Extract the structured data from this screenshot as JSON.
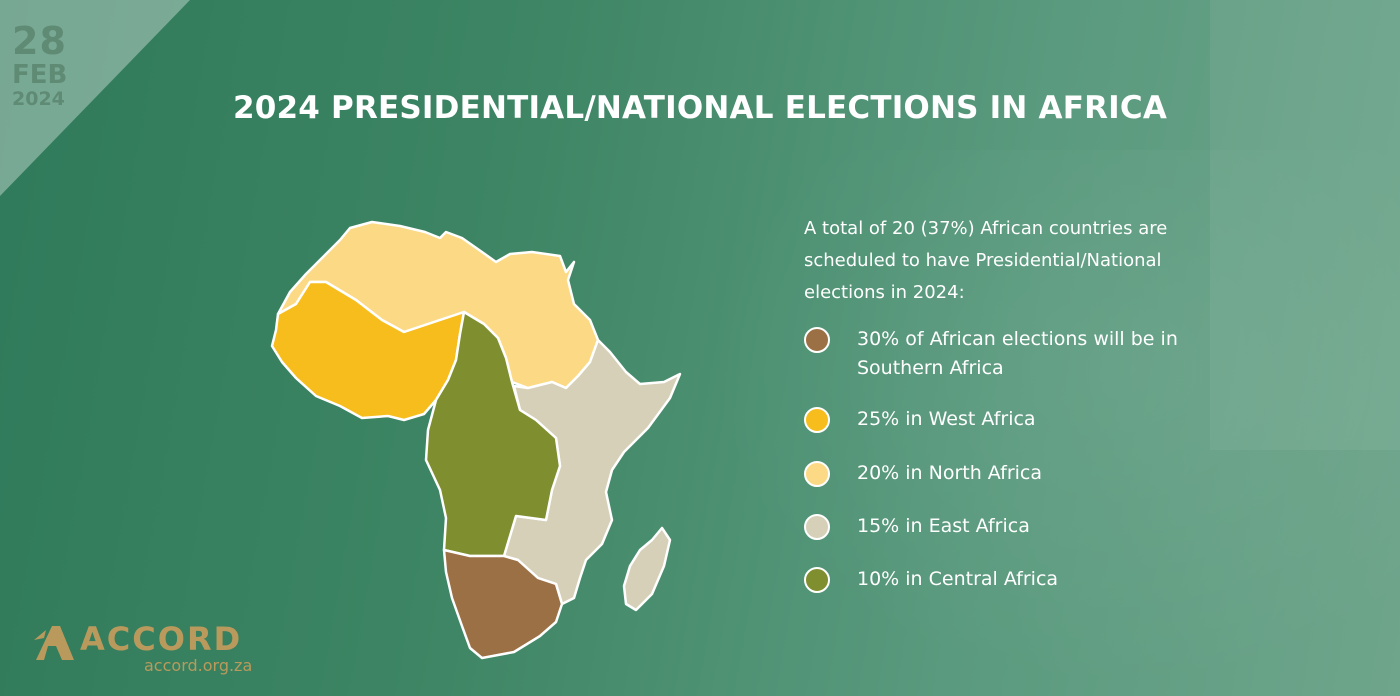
{
  "date": {
    "day": "28",
    "month": "FEB",
    "year": "2024"
  },
  "title": "2024 PRESIDENTIAL/NATIONAL ELECTIONS IN AFRICA",
  "intro": "A total of 20 (37%) African countries are scheduled to have Presidential/National elections in 2024:",
  "legend": [
    {
      "label": "30% of African elections will be in Southern Africa",
      "color": "#9b7045",
      "region": "Southern Africa",
      "share": 30
    },
    {
      "label": "25% in West Africa",
      "color": "#f6bd1c",
      "region": "West Africa",
      "share": 25
    },
    {
      "label": "20% in North Africa",
      "color": "#fbd985",
      "region": "North Africa",
      "share": 20
    },
    {
      "label": "15% in East Africa",
      "color": "#d6d0b9",
      "region": "East Africa",
      "share": 15
    },
    {
      "label": "10% in Central Africa",
      "color": "#7f8e2f",
      "region": "Central Africa",
      "share": 10
    }
  ],
  "logo": {
    "name": "ACCORD",
    "url": "accord.org.za",
    "color": "#b99a5c"
  }
}
